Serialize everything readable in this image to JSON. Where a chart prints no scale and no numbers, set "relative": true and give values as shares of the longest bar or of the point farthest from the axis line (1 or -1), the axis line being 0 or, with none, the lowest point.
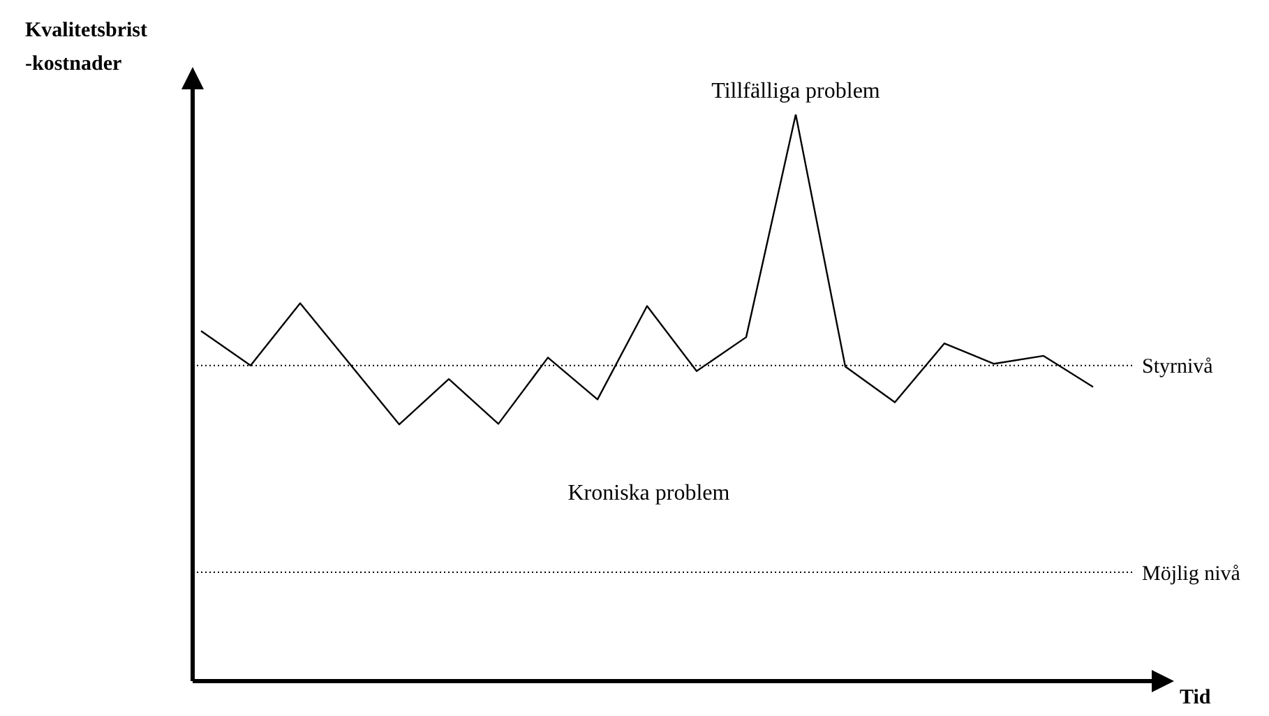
{
  "chart_data": {
    "type": "line",
    "relative": true,
    "ylabel": "Kvalitetsbrist\n-kostnader",
    "xlabel": "Tid",
    "marker": "none",
    "categories": [
      null,
      null,
      null,
      null,
      null,
      null,
      null,
      null,
      null,
      null,
      null,
      null,
      null,
      null,
      null,
      null,
      null,
      null,
      null
    ],
    "series": [
      {
        "color": "#000000",
        "values": [
          0.618,
          0.557,
          0.667,
          0.56,
          0.453,
          0.533,
          0.454,
          0.571,
          0.497,
          0.662,
          0.547,
          0.607,
          1,
          0.555,
          0.492,
          0.596,
          0.56,
          0.574,
          0.519
        ]
      }
    ],
    "ref_lines": [
      {
        "axis": "y",
        "value": 0.557,
        "label": "Styrnivå",
        "color": "#000000",
        "line_style": "dotted"
      },
      {
        "axis": "y",
        "value": 0.192,
        "label": "Möjlig nivå",
        "color": "#000000",
        "line_style": "dotted"
      }
    ],
    "annotations": [
      "Tillfälliga problem",
      "Kroniska problem"
    ]
  }
}
